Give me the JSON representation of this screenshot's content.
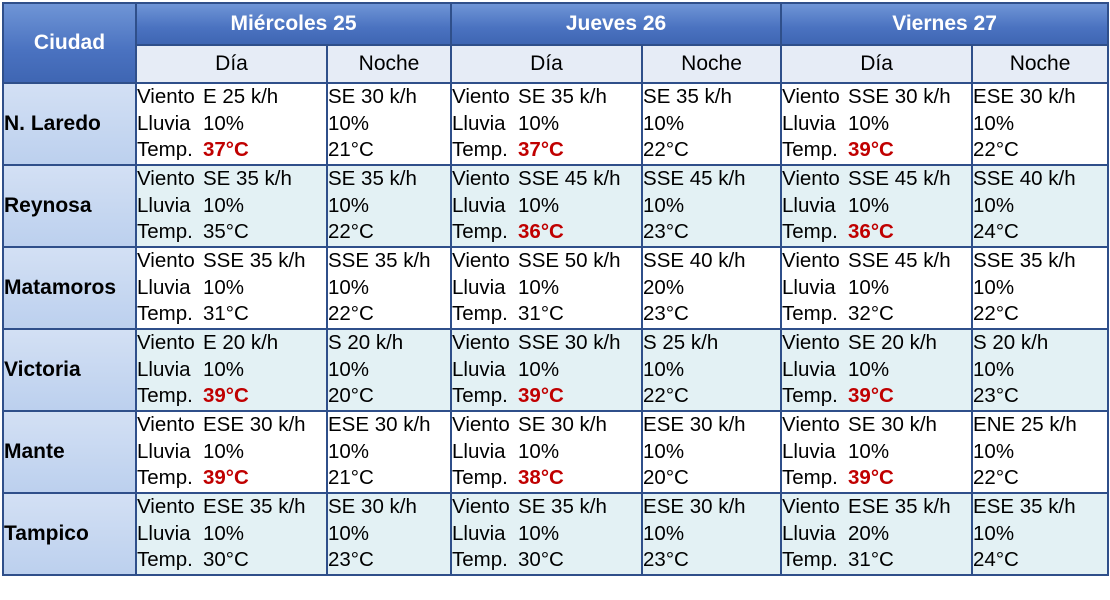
{
  "header": {
    "city_label": "Ciudad",
    "days": [
      "Miércoles 25",
      "Jueves 26",
      "Viernes 27"
    ],
    "day_label": "Día",
    "night_label": "Noche"
  },
  "labels": {
    "wind": "Viento",
    "rain": "Lluvia",
    "temp": "Temp."
  },
  "colors": {
    "header_blue": "#4a72c0",
    "border": "#2f4f8a",
    "hot_red": "#c00000",
    "row_tint": "#e3f1f4",
    "city_cell": "#c8d8f1"
  },
  "rows": [
    {
      "city": "N. Laredo",
      "periods": [
        {
          "wind": "E 25 k/h",
          "rain": "10%",
          "temp": "37°C",
          "hot": true
        },
        {
          "wind": "SE 30 k/h",
          "rain": "10%",
          "temp": "21°C",
          "hot": false
        },
        {
          "wind": "SE 35 k/h",
          "rain": "10%",
          "temp": "37°C",
          "hot": true
        },
        {
          "wind": "SE 35 k/h",
          "rain": "10%",
          "temp": "22°C",
          "hot": false
        },
        {
          "wind": "SSE 30 k/h",
          "rain": "10%",
          "temp": "39°C",
          "hot": true
        },
        {
          "wind": "ESE 30 k/h",
          "rain": "10%",
          "temp": "22°C",
          "hot": false
        }
      ]
    },
    {
      "city": "Reynosa",
      "periods": [
        {
          "wind": "SE 35 k/h",
          "rain": "10%",
          "temp": "35°C",
          "hot": false
        },
        {
          "wind": "SE 35 k/h",
          "rain": "10%",
          "temp": "22°C",
          "hot": false
        },
        {
          "wind": "SSE 45 k/h",
          "rain": "10%",
          "temp": "36°C",
          "hot": true
        },
        {
          "wind": "SSE 45 k/h",
          "rain": "10%",
          "temp": "23°C",
          "hot": false
        },
        {
          "wind": "SSE 45 k/h",
          "rain": "10%",
          "temp": "36°C",
          "hot": true
        },
        {
          "wind": "SSE 40 k/h",
          "rain": "10%",
          "temp": "24°C",
          "hot": false
        }
      ]
    },
    {
      "city": "Matamoros",
      "periods": [
        {
          "wind": "SSE 35 k/h",
          "rain": "10%",
          "temp": "31°C",
          "hot": false
        },
        {
          "wind": "SSE 35 k/h",
          "rain": "10%",
          "temp": "22°C",
          "hot": false
        },
        {
          "wind": "SSE 50 k/h",
          "rain": "10%",
          "temp": "31°C",
          "hot": false
        },
        {
          "wind": "SSE 40 k/h",
          "rain": "20%",
          "temp": "23°C",
          "hot": false
        },
        {
          "wind": "SSE 45 k/h",
          "rain": "10%",
          "temp": "32°C",
          "hot": false
        },
        {
          "wind": "SSE 35 k/h",
          "rain": "10%",
          "temp": "22°C",
          "hot": false
        }
      ]
    },
    {
      "city": "Victoria",
      "periods": [
        {
          "wind": "E 20 k/h",
          "rain": "10%",
          "temp": "39°C",
          "hot": true
        },
        {
          "wind": "S 20 k/h",
          "rain": "10%",
          "temp": "20°C",
          "hot": false
        },
        {
          "wind": "SSE 30 k/h",
          "rain": "10%",
          "temp": "39°C",
          "hot": true
        },
        {
          "wind": "S 25 k/h",
          "rain": "10%",
          "temp": "22°C",
          "hot": false
        },
        {
          "wind": "SE 20 k/h",
          "rain": "10%",
          "temp": "39°C",
          "hot": true
        },
        {
          "wind": "S 20 k/h",
          "rain": "10%",
          "temp": "23°C",
          "hot": false
        }
      ]
    },
    {
      "city": "Mante",
      "periods": [
        {
          "wind": "ESE 30 k/h",
          "rain": "10%",
          "temp": "39°C",
          "hot": true
        },
        {
          "wind": "ESE 30 k/h",
          "rain": "10%",
          "temp": "21°C",
          "hot": false
        },
        {
          "wind": "SE 30 k/h",
          "rain": "10%",
          "temp": "38°C",
          "hot": true
        },
        {
          "wind": "ESE 30 k/h",
          "rain": "10%",
          "temp": "20°C",
          "hot": false
        },
        {
          "wind": "SE 30 k/h",
          "rain": "10%",
          "temp": "39°C",
          "hot": true
        },
        {
          "wind": "ENE 25 k/h",
          "rain": "10%",
          "temp": "22°C",
          "hot": false
        }
      ]
    },
    {
      "city": "Tampico",
      "periods": [
        {
          "wind": "ESE 35 k/h",
          "rain": "10%",
          "temp": "30°C",
          "hot": false
        },
        {
          "wind": "SE 30 k/h",
          "rain": "10%",
          "temp": "23°C",
          "hot": false
        },
        {
          "wind": "SE 35 k/h",
          "rain": "10%",
          "temp": "30°C",
          "hot": false
        },
        {
          "wind": "ESE 30 k/h",
          "rain": "10%",
          "temp": "23°C",
          "hot": false
        },
        {
          "wind": "ESE 35 k/h",
          "rain": "20%",
          "temp": "31°C",
          "hot": false
        },
        {
          "wind": "ESE 35 k/h",
          "rain": "10%",
          "temp": "24°C",
          "hot": false
        }
      ]
    }
  ]
}
